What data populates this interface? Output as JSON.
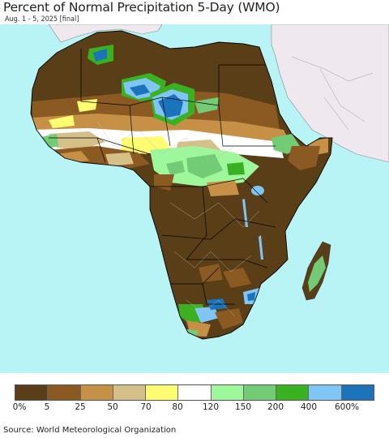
{
  "title": "Percent of Normal Precipitation 5-Day (WMO)",
  "subtitle": "Aug. 1 - 5, 2025 [final]",
  "source": "Source: World Meteorological Organization",
  "colors": {
    "ocean": "#b8f4f6",
    "other_land": "#efe9ef",
    "dark_brown": "#5a3e17",
    "brown": "#8a5a22",
    "tan": "#c69047",
    "light_tan": "#d6c08a",
    "yellow": "#fefc70",
    "white": "#ffffff",
    "light_green": "#9ef79a",
    "green": "#72cc76",
    "dark_green": "#39b121",
    "light_blue": "#7fc6f6",
    "blue": "#1b74b9"
  },
  "legend": {
    "swatches": [
      "#5a3e17",
      "#8a5a22",
      "#c69047",
      "#d6c08a",
      "#fefc70",
      "#ffffff",
      "#9ef79a",
      "#72cc76",
      "#39b121",
      "#7fc6f6",
      "#1b74b9"
    ],
    "labels": [
      "0%",
      "5",
      "25",
      "50",
      "70",
      "80",
      "120",
      "150",
      "200",
      "400",
      "600%"
    ]
  }
}
